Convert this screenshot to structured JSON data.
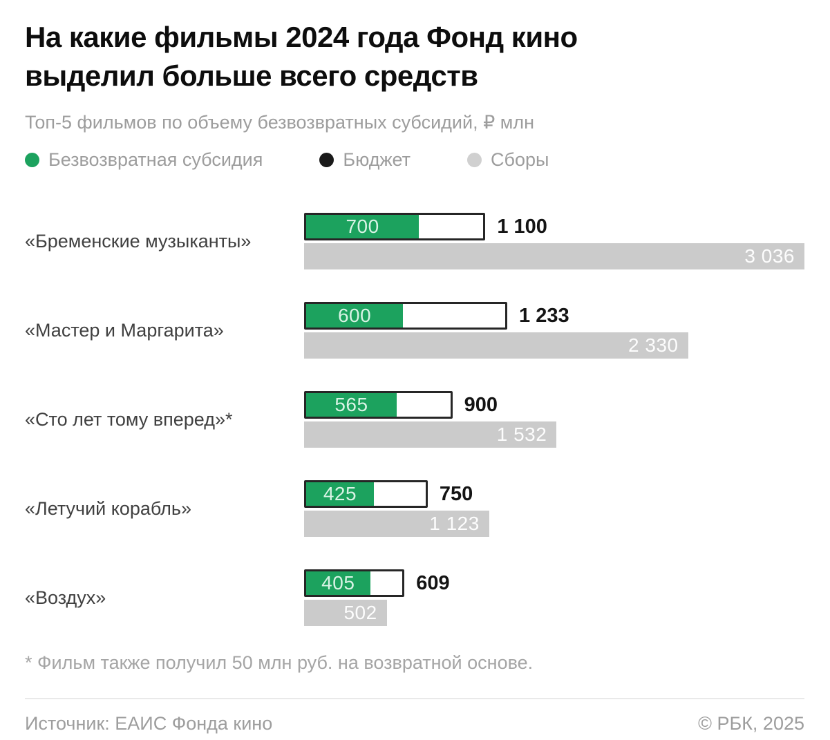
{
  "header": {
    "title": "На какие фильмы 2024 года Фонд кино выделил больше всего средств",
    "subtitle": "Топ-5 фильмов по объему безвозвратных субсидий, ₽ млн"
  },
  "legend": {
    "items": [
      {
        "label": "Безвозвратная субсидия",
        "color": "#1ca25e"
      },
      {
        "label": "Бюджет",
        "color": "#1a1a1a"
      },
      {
        "label": "Сборы",
        "color": "#d0d0d0"
      }
    ]
  },
  "chart_data": {
    "type": "bar",
    "orientation": "horizontal",
    "title": "На какие фильмы 2024 года Фонд кино выделил больше всего средств",
    "subtitle": "Топ-5 фильмов по объему безвозвратных субсидий, ₽ млн",
    "unit": "₽ млн",
    "axis_max": 3036,
    "legend_position": "top",
    "grid": false,
    "categories": [
      "«Бременские музыканты»",
      "«Мастер и Маргарита»",
      "«Сто лет тому вперед»*",
      "«Летучий корабль»",
      "«Воздух»"
    ],
    "series": [
      {
        "name": "Безвозвратная субсидия",
        "color": "#1ca25e",
        "values": [
          700,
          600,
          565,
          425,
          405
        ],
        "labels": [
          "700",
          "600",
          "565",
          "425",
          "405"
        ]
      },
      {
        "name": "Бюджет",
        "color": "#ffffff",
        "values": [
          1100,
          1233,
          900,
          750,
          609
        ],
        "labels": [
          "1 100",
          "1 233",
          "900",
          "750",
          "609"
        ]
      },
      {
        "name": "Сборы",
        "color": "#cbcbcb",
        "values": [
          3036,
          2330,
          1532,
          1123,
          502
        ],
        "labels": [
          "3 036",
          "2 330",
          "1 532",
          "1 123",
          "502"
        ]
      }
    ]
  },
  "footnote": "* Фильм также получил 50 млн руб. на возвратной основе.",
  "footer": {
    "source": "Источник: ЕАИС Фонда кино",
    "copyright": "© РБК, 2025"
  }
}
